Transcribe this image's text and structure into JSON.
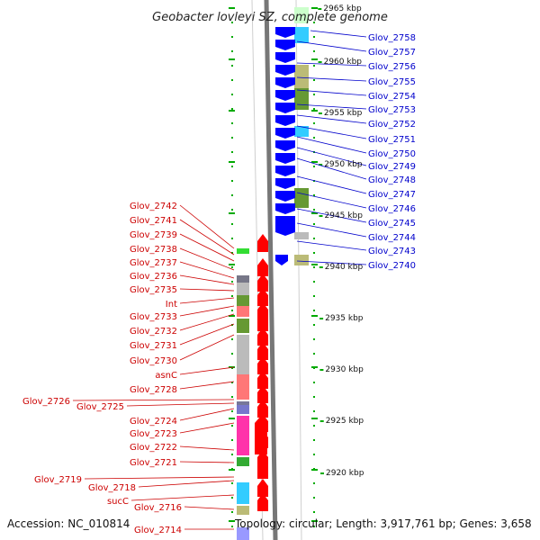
{
  "title": "Geobacter lovleyi SZ, complete genome",
  "accession": "Accession: NC_010814",
  "topology": "Topology: circular; Length: 3,917,761 bp; Genes: 3,658",
  "colors": {
    "forward": "#ff0000",
    "reverse": "#0000ff",
    "axis": "#888888",
    "tick": "#00aa00",
    "label_forward": "#cc0000",
    "label_reverse": "#0000cc"
  },
  "kbp_labels": [
    "2965 kbp",
    "2960 kbp",
    "2955 kbp",
    "2950 kbp",
    "2945 kbp",
    "2940 kbp",
    "2935 kbp",
    "2930 kbp",
    "2925 kbp",
    "2920 kbp"
  ],
  "reverse_labels": [
    "Glov_2758",
    "Glov_2757",
    "Glov_2756",
    "Glov_2755",
    "Glov_2754",
    "Glov_2753",
    "Glov_2752",
    "Glov_2751",
    "Glov_2750",
    "Glov_2749",
    "Glov_2748",
    "Glov_2747",
    "Glov_2746",
    "Glov_2745",
    "Glov_2744",
    "Glov_2743",
    "Glov_2740"
  ],
  "forward_labels": [
    "Glov_2742",
    "Glov_2741",
    "Glov_2739",
    "Glov_2738",
    "Glov_2737",
    "Glov_2736",
    "Glov_2735",
    "Int",
    "Glov_2733",
    "Glov_2732",
    "Glov_2731",
    "Glov_2730",
    "asnC",
    "Glov_2728",
    "Glov_2726",
    "Glov_2725",
    "Glov_2724",
    "Glov_2723",
    "Glov_2722",
    "Glov_2721",
    "Glov_2719",
    "Glov_2718",
    "sucC",
    "Glov_2716",
    "Glov_2714"
  ],
  "color_blocks": {
    "reverse": [
      "#ccffcc",
      "#33ccff",
      "#bbbb77",
      "#669933",
      "#669933",
      "#33ccff",
      "#669933",
      "#669933",
      "#bbbbbb",
      "#bbbb77"
    ],
    "forward": [
      "#33dd33",
      "#777788",
      "#bbbbbb",
      "#669933",
      "#ff7777",
      "#669933",
      "#bbbbbb",
      "#bbbbbb",
      "#ff7777",
      "#777799",
      "#7777cc",
      "#ff33aa",
      "#33aa33",
      "#33ccff",
      "#bbbb77",
      "#9999ff"
    ]
  }
}
